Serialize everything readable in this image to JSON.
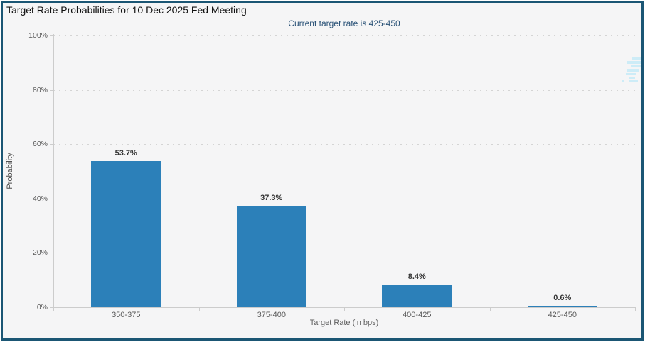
{
  "header": {
    "title": "Target Rate Probabilities for 10 Dec 2025 Fed Meeting",
    "subtitle": "Current target rate is 425-450"
  },
  "chart_data": {
    "type": "bar",
    "title": "Target Rate Probabilities for 10 Dec 2025 Fed Meeting",
    "subtitle": "Current target rate is 425-450",
    "categories": [
      "350-375",
      "375-400",
      "400-425",
      "425-450"
    ],
    "values": [
      53.7,
      37.3,
      8.4,
      0.6
    ],
    "value_labels": [
      "53.7%",
      "37.3%",
      "8.4%",
      "0.6%"
    ],
    "xlabel": "Target Rate (in bps)",
    "ylabel": "Probability",
    "ylim": [
      0,
      100
    ],
    "ytick_step": 20,
    "ytick_labels": [
      "0%",
      "20%",
      "40%",
      "60%",
      "80%",
      "100%"
    ],
    "grid": "horizontal-dotted",
    "legend": "none",
    "bar_color": "#2c80b9"
  },
  "colors": {
    "window_border": "#1b5674",
    "background": "#f5f5f6",
    "bar": "#2c80b9",
    "title_text": "#111111",
    "subtitle_text": "#2a5277",
    "axis_text": "#5a5a5a",
    "value_label_text": "#333333",
    "grid": "#d4d4d4",
    "axis_line": "#cccccc",
    "watermark": "#cdecf7"
  },
  "icons": {
    "watermark": "logo-fragment-watermark"
  }
}
